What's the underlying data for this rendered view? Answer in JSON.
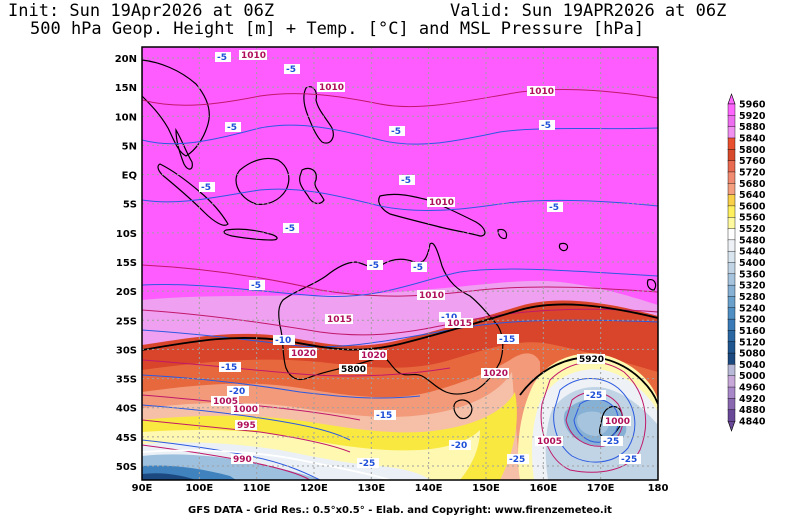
{
  "header": {
    "init": "Init: Sun 19Apr2026 at 06Z",
    "valid": "Valid: Sun 19APR2026 at 06Z",
    "title": "500 hPa Geop. Height [m] + Temp. [°C] and MSL Pressure [hPa]"
  },
  "map": {
    "lon_ticks": [
      "90E",
      "100E",
      "110E",
      "120E",
      "130E",
      "140E",
      "150E",
      "160E",
      "170E",
      "180"
    ],
    "lat_ticks": [
      "20N",
      "15N",
      "10N",
      "5N",
      "EQ",
      "5S",
      "10S",
      "15S",
      "20S",
      "25S",
      "30S",
      "35S",
      "40S",
      "45S",
      "50S"
    ],
    "temp_labels": [
      "-5",
      "-5",
      "-5",
      "-5",
      "-5",
      "-5",
      "-5",
      "-5",
      "-5",
      "-5",
      "-5",
      "-5",
      "-10",
      "-10",
      "-15",
      "-15",
      "-15",
      "-20",
      "-20",
      "-25",
      "-25",
      "-25",
      "-25",
      "-25"
    ],
    "pressure_labels": [
      "1010",
      "1010",
      "1010",
      "1010",
      "1010",
      "1015",
      "1015",
      "1020",
      "1020",
      "1020",
      "1005",
      "1000",
      "995",
      "990",
      "1005",
      "1000"
    ],
    "height_labels": [
      "5800",
      "5920"
    ]
  },
  "colorbar": {
    "labels": [
      "5960",
      "5920",
      "5880",
      "5840",
      "5800",
      "5760",
      "5720",
      "5680",
      "5640",
      "5600",
      "5560",
      "5520",
      "5480",
      "5440",
      "5400",
      "5360",
      "5320",
      "5280",
      "5240",
      "5200",
      "5160",
      "5120",
      "5080",
      "5040",
      "5000",
      "4960",
      "4920",
      "4880",
      "4840"
    ],
    "colors": [
      "#ff66ff",
      "#ee6ef0",
      "#f090f0",
      "#e85030",
      "#d84a2c",
      "#e86a50",
      "#f08a70",
      "#f4a080",
      "#f8d04a",
      "#fff060",
      "#fffaa0",
      "#ffffff",
      "#eef2f6",
      "#d8e4ee",
      "#c0d4e6",
      "#a6c4de",
      "#86b0d4",
      "#6aa0cc",
      "#4f8fc4",
      "#3a7ab6",
      "#2a66a2",
      "#205690",
      "#1c4a80",
      "#b8b8d8",
      "#c8a8d8",
      "#a888c8",
      "#8a68b0",
      "#6a4898"
    ]
  },
  "footer": "GFS DATA - Grid Res.: 0.5°x0.5° - Elab. and Copyright: www.firenzemeteo.it"
}
